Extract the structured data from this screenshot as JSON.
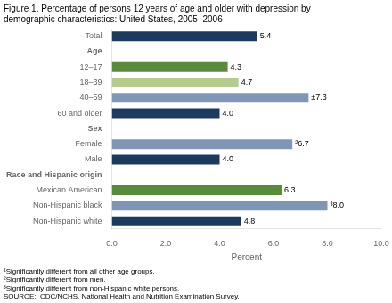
{
  "chart_data": {
    "type": "bar",
    "orientation": "horizontal",
    "title": "Figure 1. Percentage of persons 12 years of age and older with depression by\ndemographic characteristics: United States, 2005–2006",
    "categories": [
      "Total",
      "Age",
      "12–17",
      "18–39",
      "40–59",
      "60 and older",
      "Sex",
      "Female",
      "Male",
      "Race and Hispanic origin",
      "Mexican American",
      "Non-Hispanic black",
      "Non-Hispanic white"
    ],
    "values": [
      5.4,
      null,
      4.3,
      4.7,
      7.3,
      4.0,
      null,
      6.7,
      4.0,
      null,
      6.3,
      8.0,
      4.8
    ],
    "value_labels": [
      "5.4",
      null,
      "4.3",
      "4.7",
      "±7.3",
      "4.0",
      null,
      "²6.7",
      "4.0",
      null,
      "6.3",
      "³8.0",
      "4.8"
    ],
    "colors": [
      "#1c3a5e",
      null,
      "#5a8a3c",
      "#b5cc8e",
      "#8096b4",
      "#1c3a5e",
      null,
      "#8096b4",
      "#1c3a5e",
      null,
      "#5a8a3c",
      "#8096b4",
      "#1c3a5e"
    ],
    "xlabel": "Percent",
    "xlim": [
      0,
      10.0
    ],
    "xticks": [
      {
        "value": 0,
        "label": "0.0"
      },
      {
        "value": 2,
        "label": "2.0"
      },
      {
        "value": 4,
        "label": "4.0"
      },
      {
        "value": 6,
        "label": "6.0"
      },
      {
        "value": 8,
        "label": "8.0"
      },
      {
        "value": 10,
        "label": "10.0"
      }
    ],
    "grid": false,
    "data_labels": true,
    "annotations": [
      "¹Significantly different from all other age groups.",
      "²Significantly different from men.",
      "³Significantly different from non-Hispanic white persons.",
      "SOURCE:  CDC/NCHS, National Health and Nutrition Examination Survey."
    ]
  }
}
